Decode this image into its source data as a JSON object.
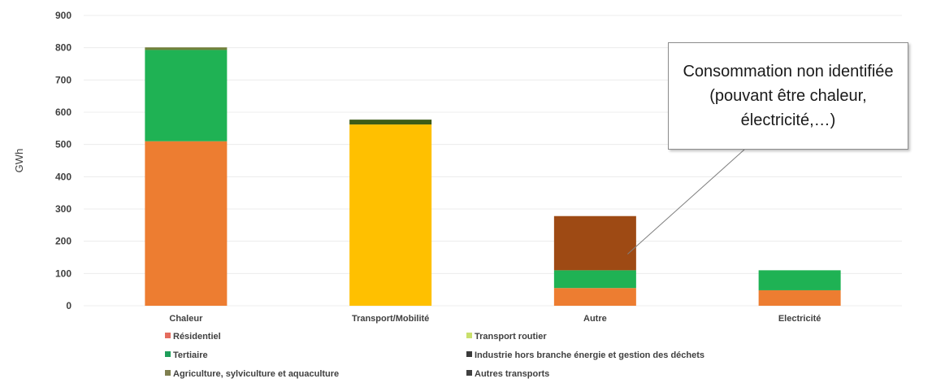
{
  "chart_data": {
    "type": "bar",
    "stacked": true,
    "ylabel": "GWh",
    "ylim": [
      0,
      900
    ],
    "yticks": [
      0,
      100,
      200,
      300,
      400,
      500,
      600,
      700,
      800,
      900
    ],
    "categories": [
      "Chaleur",
      "Transport/Mobilité",
      "Autre",
      "Electricité"
    ],
    "series": [
      {
        "name": "Résidentiel",
        "color": "#ed7d31",
        "values": [
          510,
          0,
          55,
          48
        ]
      },
      {
        "name": "Tertiaire",
        "color": "#1fb254",
        "values": [
          283,
          0,
          55,
          62
        ]
      },
      {
        "name": "Agriculture, sylviculture et aquaculture",
        "color": "#70803a",
        "values": [
          8,
          0,
          0,
          0
        ]
      },
      {
        "name": "Transport routier",
        "color": "#ffc000",
        "values": [
          0,
          562,
          0,
          0
        ]
      },
      {
        "name": "Industrie hors branche énergie et gestion des déchets",
        "color": "#9e4a14",
        "values": [
          0,
          0,
          168,
          0
        ]
      },
      {
        "name": "Autres transports",
        "color": "#3d5c17",
        "values": [
          0,
          15,
          0,
          0
        ]
      }
    ],
    "legend_placement": "bottom",
    "legend_swatch_colors": {
      "Résidentiel": "#e46c5e",
      "Tertiaire": "#1e9e5a",
      "Agriculture, sylviculture et aquaculture": "#7f7f4f",
      "Transport routier": "#c9e06c",
      "Industrie hors branche énergie et gestion des déchets": "#3a3a3a",
      "Autres transports": "#404040"
    },
    "grid": true,
    "annotation": {
      "text": "Consommation non identifiée (pouvant être chaleur, électricité,…)",
      "target_category": "Autre"
    }
  },
  "legend": [
    {
      "label": "Résidentiel",
      "color": "#e46c5e"
    },
    {
      "label": "Transport routier",
      "color": "#c9e06c"
    },
    {
      "label": "Tertiaire",
      "color": "#1e9e5a"
    },
    {
      "label": "Industrie hors branche énergie et gestion des déchets",
      "color": "#3a3a3a"
    },
    {
      "label": "Agriculture, sylviculture et aquaculture",
      "color": "#7f7f4f"
    },
    {
      "label": "Autres transports",
      "color": "#404040"
    }
  ]
}
